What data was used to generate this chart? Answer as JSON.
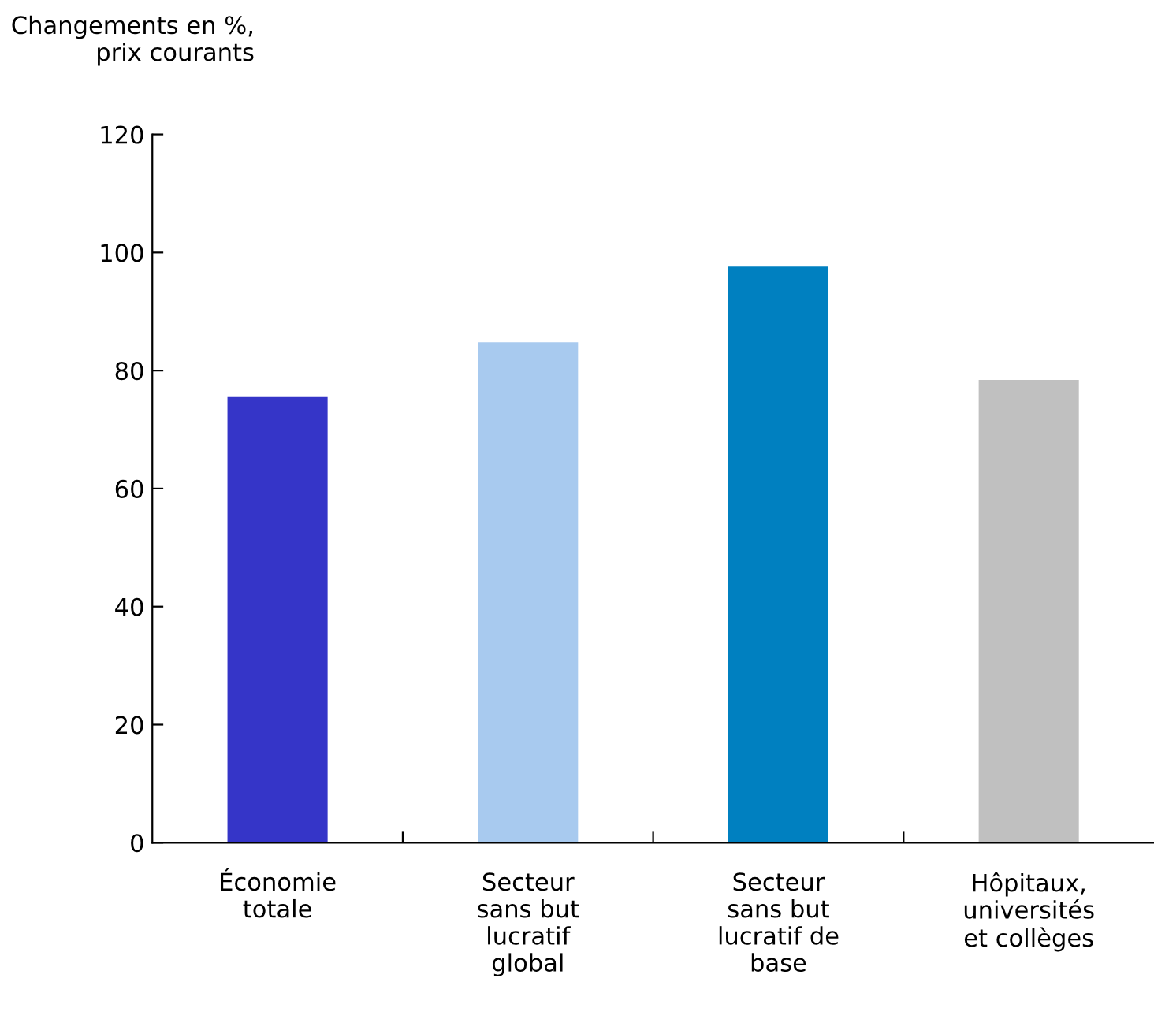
{
  "chart_data": {
    "type": "bar",
    "ylabel": "Changements en %,\nprix courants",
    "categories": [
      "Économie\ntotale",
      "Secteur\nsans but\nlucratif\nglobal",
      "Secteur\nsans but\nlucratif de\nbase",
      "Hôpitaux,\nuniversités\net collèges"
    ],
    "values": [
      75.5,
      84.8,
      97.6,
      78.4
    ],
    "colors": [
      "#3535c8",
      "#a8caef",
      "#0080c0",
      "#c0c0c0"
    ],
    "ylim": [
      0,
      120
    ],
    "yticks": [
      0,
      20,
      40,
      60,
      80,
      100,
      120
    ],
    "grid": false,
    "legend": false
  }
}
